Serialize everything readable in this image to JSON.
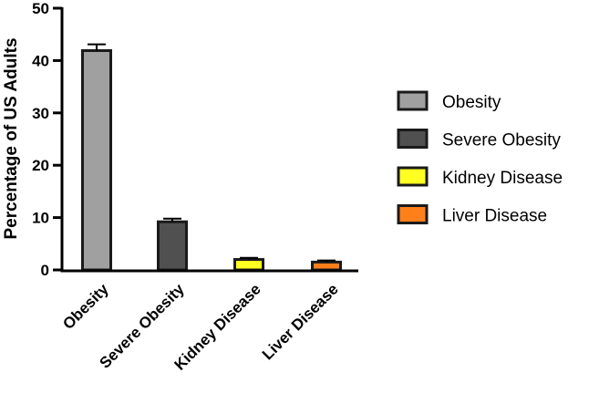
{
  "chart_data": {
    "type": "bar",
    "title": "",
    "xlabel": "",
    "ylabel": "Percentage of US Adults",
    "ylim": [
      0,
      50
    ],
    "yticks": [
      "0",
      "10",
      "20",
      "30",
      "40",
      "50"
    ],
    "categories": [
      "Obesity",
      "Severe Obesity",
      "Kidney Disease",
      "Liver Disease"
    ],
    "values": [
      41.9,
      9.2,
      2.0,
      1.5
    ],
    "error_upper": [
      43.1,
      9.8,
      2.3,
      1.8
    ],
    "colors": [
      "#a0a0a0",
      "#505050",
      "#ffff22",
      "#ff7f1a"
    ],
    "legend": {
      "position": "right",
      "entries": [
        "Obesity",
        "Severe Obesity",
        "Kidney Disease",
        "Liver Disease"
      ]
    }
  }
}
